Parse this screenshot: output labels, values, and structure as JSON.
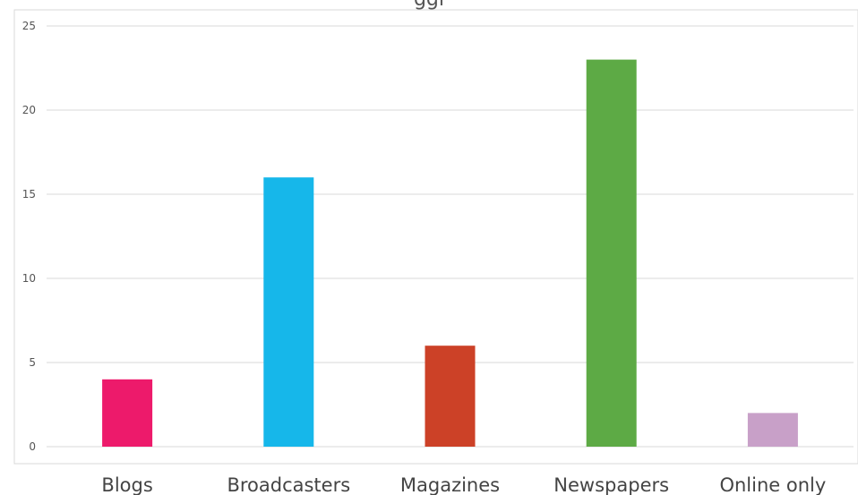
{
  "chart_data": {
    "type": "bar",
    "title": "ggi",
    "categories": [
      "Blogs",
      "Broadcasters",
      "Magazines",
      "Newspapers",
      "Online only"
    ],
    "values": [
      4,
      16,
      6,
      23,
      2
    ],
    "colors": [
      "#ed1a6b",
      "#16b7ea",
      "#cc4127",
      "#5daa45",
      "#c8a0c8"
    ],
    "ylim": [
      0,
      25
    ],
    "yticks": [
      "0",
      "5",
      "10",
      "15",
      "20",
      "25"
    ],
    "grid": true,
    "legend": "none"
  }
}
